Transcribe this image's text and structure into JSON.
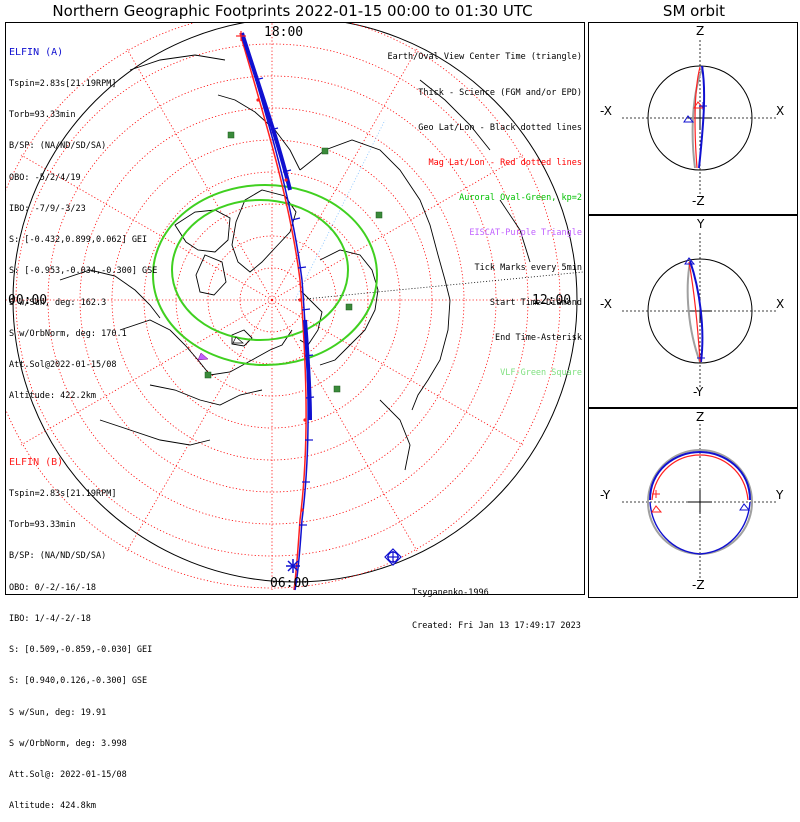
{
  "title": "Northern Geographic Footprints 2022-01-15 00:00 to 01:30 UTC",
  "side_title": "SM orbit",
  "clock_labels": {
    "top": "18:00",
    "left": "00:00",
    "right": "12:00",
    "bottom": "06:00"
  },
  "elfin_a": {
    "name": "ELFIN (A)",
    "color": "#1010d0",
    "lines": [
      "Tspin=2.83s[21.19RPM]",
      "Torb=93.33min",
      "B/SP: (NA/ND/SD/SA)",
      "OBO: -5/2/4/19",
      "IBO: -7/9/-3/23",
      "S: [-0.432,0.899,0.062] GEI",
      "S: [-0.953,-0.034,-0.300] GSE",
      "S w/Sun, deg: 162.3",
      "S w/OrbNorm, deg: 170.1",
      "Att.Sol@2022-01-15/08",
      "Altitude: 422.2km"
    ]
  },
  "elfin_b": {
    "name": "ELFIN (B)",
    "color": "#ff2020",
    "lines": [
      "Tspin=2.83s[21.19RPM]",
      "Torb=93.33min",
      "B/SP: (NA/ND/SD/SA)",
      "OBO: 0/-2/-16/-18",
      "IBO: 1/-4/-2/-18",
      "S: [0.509,-0.859,-0.030] GEI",
      "S: [0.940,0.126,-0.300] GSE",
      "S w/Sun, deg: 19.91",
      "S w/OrbNorm, deg: 3.998",
      "Att.Sol@: 2022-01-15/08",
      "Altitude: 424.8km"
    ]
  },
  "legend": [
    {
      "text": "Earth/Oval View Center Time (triangle)",
      "color": "#000000"
    },
    {
      "text": "Thick - Science (FGM and/or EPD)",
      "color": "#000000"
    },
    {
      "text": "Geo Lat/Lon - Black dotted lines",
      "color": "#000000"
    },
    {
      "text": "Mag Lat/Lon - Red dotted lines",
      "color": "#ff0000"
    },
    {
      "text": "Auroral Oval-Green, kp=2",
      "color": "#00c000"
    },
    {
      "text": "EISCAT-Purple Triangle",
      "color": "#c060ff"
    },
    {
      "text": "Tick Marks every 5min",
      "color": "#000000"
    },
    {
      "text": "Start Time-Diamond",
      "color": "#000000"
    },
    {
      "text": "End Time-Asterisk",
      "color": "#000000"
    },
    {
      "text": "VLF-Green Square",
      "color": "#80e080"
    }
  ],
  "footer": {
    "model": "Tsyganenko-1996",
    "created": "Created: Fri Jan 13 17:49:17 2023"
  },
  "panels": [
    {
      "top": "Z",
      "bottom": "-Z",
      "left": "-X",
      "right": "X"
    },
    {
      "top": "Y",
      "bottom": "-Y",
      "left": "-X",
      "right": "X"
    },
    {
      "top": "Z",
      "bottom": "-Z",
      "left": "-Y",
      "right": "Y"
    }
  ],
  "colors": {
    "elfin_a": "#1010d0",
    "elfin_b": "#ff2020",
    "mag_grid": "#ff0000",
    "geo_grid": "#000000",
    "oval": "#40d020",
    "vlf": "#3a8a3a",
    "eiscat": "#c060ff"
  }
}
